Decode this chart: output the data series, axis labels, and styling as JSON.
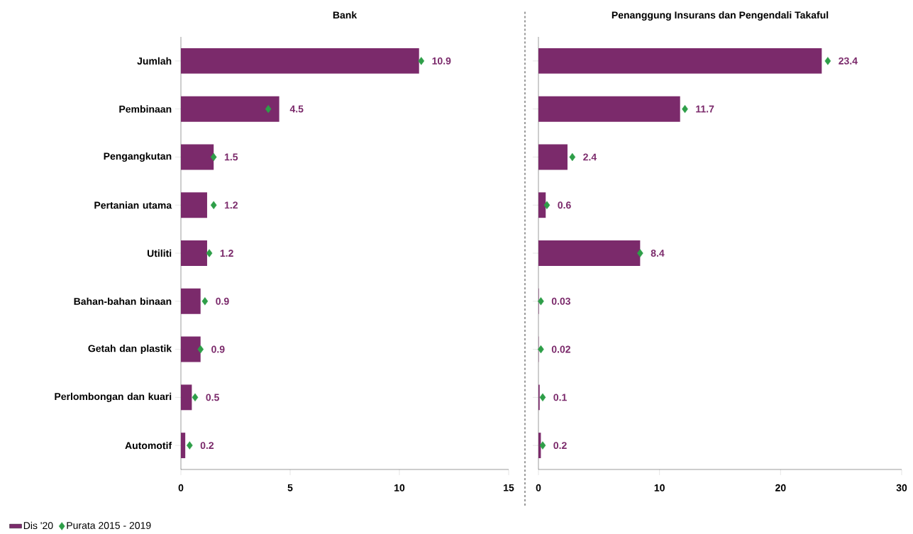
{
  "chart_data": [
    {
      "type": "bar",
      "orientation": "horizontal",
      "title": "Bank",
      "categories": [
        "Jumlah",
        "Pembinaan",
        "Pengangkutan",
        "Pertanian utama",
        "Utiliti",
        "Bahan-bahan binaan",
        "Getah dan plastik",
        "Perlombongan dan kuari",
        "Automotif"
      ],
      "series": [
        {
          "name": "Dis '20",
          "color": "#7b2a6b",
          "values": [
            10.9,
            4.5,
            1.5,
            1.2,
            1.2,
            0.9,
            0.9,
            0.5,
            0.2
          ],
          "value_labels": [
            "10.9",
            "4.5",
            "1.5",
            "1.2",
            "1.2",
            "0.9",
            "0.9",
            "0.5",
            "0.2"
          ]
        },
        {
          "name": "Purata 2015 - 2019",
          "type": "scatter",
          "marker": "diamond",
          "color": "#2e9e48",
          "values": [
            11.0,
            4.0,
            1.5,
            1.5,
            1.3,
            1.1,
            0.9,
            0.65,
            0.4
          ]
        }
      ],
      "xlim": [
        0,
        15
      ],
      "xticks": [
        0,
        5,
        10,
        15
      ],
      "legend": "bottom left"
    },
    {
      "type": "bar",
      "orientation": "horizontal",
      "title": "Penanggung Insurans dan Pengendali Takaful",
      "categories": [
        null,
        null,
        null,
        null,
        null,
        null,
        null,
        null,
        null
      ],
      "series": [
        {
          "color": "#7b2a6b",
          "values": [
            23.4,
            11.7,
            2.4,
            0.6,
            8.4,
            0.03,
            0.02,
            0.1,
            0.2
          ],
          "value_labels": [
            "23.4",
            "11.7",
            "2.4",
            "0.6",
            "8.4",
            "0.03",
            "0.02",
            "0.1",
            "0.2"
          ]
        },
        {
          "type": "scatter",
          "marker": "diamond",
          "color": "#2e9e48",
          "values": [
            23.9,
            12.1,
            2.8,
            0.7,
            8.4,
            0.2,
            0.2,
            0.35,
            0.35
          ]
        }
      ],
      "xlim": [
        0,
        30
      ],
      "xticks": [
        0,
        10,
        20,
        30
      ],
      "tick_labels": "x"
    }
  ]
}
